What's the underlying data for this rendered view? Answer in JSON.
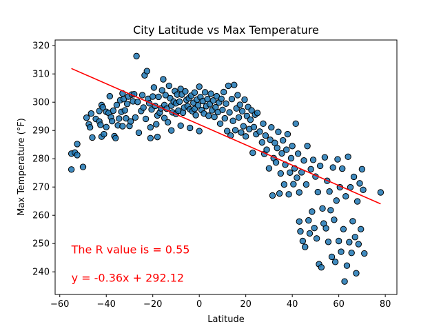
{
  "chart_data": {
    "type": "scatter",
    "title": "City Latitude vs Max Temperature",
    "xlabel": "Latitude",
    "ylabel": "Max Temperature (°F)",
    "xlim": [
      -62,
      85
    ],
    "ylim": [
      232,
      322
    ],
    "xticks": [
      -60,
      -40,
      -20,
      0,
      20,
      40,
      60,
      80
    ],
    "yticks": [
      240,
      250,
      260,
      270,
      280,
      290,
      300,
      310,
      320
    ],
    "grid": false,
    "point_color": "#1f77b4",
    "point_edge_color": "#000000",
    "regression_color": "#ff0000",
    "annotations": [
      {
        "text": "The R value is = 0.55",
        "x": -55,
        "y": 246.5,
        "color": "#ff0000"
      },
      {
        "text": "y = -0.36x + 292.12",
        "x": -55,
        "y": 236.5,
        "color": "#ff0000"
      }
    ],
    "regression": {
      "slope": -0.36,
      "intercept": 292.12,
      "x_range": [
        -55,
        78
      ]
    },
    "points": [
      [
        -55,
        276.2
      ],
      [
        -55,
        281.8
      ],
      [
        -53.5,
        282.2
      ],
      [
        -52.5,
        285.2
      ],
      [
        -52.5,
        281.3
      ],
      [
        -50,
        277.1
      ],
      [
        -48.5,
        294.5
      ],
      [
        -47.5,
        292.2
      ],
      [
        -47,
        291.1
      ],
      [
        -46.5,
        296
      ],
      [
        -46,
        287.5
      ],
      [
        -44.5,
        294.1
      ],
      [
        -43,
        296.9
      ],
      [
        -43,
        293.2
      ],
      [
        -42.5,
        292
      ],
      [
        -42,
        299
      ],
      [
        -42,
        287.8
      ],
      [
        -41.5,
        298.2
      ],
      [
        -41,
        288.7
      ],
      [
        -40,
        296.6
      ],
      [
        -40,
        291.2
      ],
      [
        -39,
        296.2
      ],
      [
        -38.5,
        302.1
      ],
      [
        -38,
        294.7
      ],
      [
        -37.5,
        293.3
      ],
      [
        -37,
        297
      ],
      [
        -36.5,
        288
      ],
      [
        -36,
        287.3
      ],
      [
        -35.5,
        299
      ],
      [
        -35,
        291.8
      ],
      [
        -34.5,
        294.2
      ],
      [
        -34,
        300.7
      ],
      [
        -33.5,
        296.6
      ],
      [
        -33,
        303.1
      ],
      [
        -33,
        291.5
      ],
      [
        -32.5,
        301.1
      ],
      [
        -32,
        297.1
      ],
      [
        -31.5,
        294.3
      ],
      [
        -31,
        299.4
      ],
      [
        -30.5,
        302
      ],
      [
        -30,
        291.6
      ],
      [
        -29.5,
        293.2
      ],
      [
        -29,
        302.7
      ],
      [
        -28.5,
        300.3
      ],
      [
        -28,
        302.8
      ],
      [
        -27.5,
        294.6
      ],
      [
        -27,
        316.3
      ],
      [
        -26.5,
        300.1
      ],
      [
        -26,
        289.2
      ],
      [
        -25,
        296.9
      ],
      [
        -24.5,
        302.5
      ],
      [
        -24,
        298.1
      ],
      [
        -23.5,
        309.5
      ],
      [
        -23,
        294.1
      ],
      [
        -22.5,
        311
      ],
      [
        -22,
        301.2
      ],
      [
        -21.5,
        299.6
      ],
      [
        -21,
        291.1
      ],
      [
        -21,
        287.3
      ],
      [
        -20.5,
        297.4
      ],
      [
        -20,
        302
      ],
      [
        -19.5,
        305.2
      ],
      [
        -19,
        298.7
      ],
      [
        -18.5,
        292.2
      ],
      [
        -18,
        287.7
      ],
      [
        -18,
        295.3
      ],
      [
        -17.5,
        301.9
      ],
      [
        -17,
        296.3
      ],
      [
        -16.5,
        297.8
      ],
      [
        -16,
        304.2
      ],
      [
        -15.5,
        308.1
      ],
      [
        -15,
        299
      ],
      [
        -15,
        294.4
      ],
      [
        -14.5,
        302.5
      ],
      [
        -14,
        297.7
      ],
      [
        -13.5,
        292.9
      ],
      [
        -13,
        305.8
      ],
      [
        -12.5,
        301.4
      ],
      [
        -12,
        298.8
      ],
      [
        -12,
        290
      ],
      [
        -11.5,
        296.4
      ],
      [
        -11,
        300.2
      ],
      [
        -10.5,
        303.9
      ],
      [
        -10,
        295.9
      ],
      [
        -10,
        299.6
      ],
      [
        -9.5,
        302.7
      ],
      [
        -9,
        297
      ],
      [
        -8.5,
        300.2
      ],
      [
        -8,
        291.7
      ],
      [
        -8,
        304.7
      ],
      [
        -7.5,
        302.7
      ],
      [
        -7,
        296.3
      ],
      [
        -6.5,
        298.1
      ],
      [
        -6,
        303.8
      ],
      [
        -5.5,
        300.8
      ],
      [
        -5,
        298.6
      ],
      [
        -4.5,
        301.4
      ],
      [
        -4,
        297.5
      ],
      [
        -4,
        290.9
      ],
      [
        -3.5,
        302.3
      ],
      [
        -3,
        296.8
      ],
      [
        -2.5,
        299.8
      ],
      [
        -2,
        297.6
      ],
      [
        -2,
        303.4
      ],
      [
        -1.5,
        295.4
      ],
      [
        -1,
        300.9
      ],
      [
        -0.5,
        298.9
      ],
      [
        0,
        305.5
      ],
      [
        0,
        289.8
      ],
      [
        0.5,
        301.8
      ],
      [
        1,
        297.2
      ],
      [
        1.5,
        300.4
      ],
      [
        2,
        296
      ],
      [
        2.5,
        303.5
      ],
      [
        3,
        298.6
      ],
      [
        3.5,
        301.1
      ],
      [
        4,
        295.2
      ],
      [
        4.5,
        299.3
      ],
      [
        5,
        303
      ],
      [
        5.5,
        297.1
      ],
      [
        6,
        300.6
      ],
      [
        6.5,
        294.8
      ],
      [
        7,
        298.2
      ],
      [
        7.5,
        302.1
      ],
      [
        8,
        296.5
      ],
      [
        8.5,
        299.9
      ],
      [
        9,
        292.4
      ],
      [
        9.5,
        301.2
      ],
      [
        10,
        297.3
      ],
      [
        10.5,
        303.6
      ],
      [
        11,
        294.3
      ],
      [
        11.5,
        299.5
      ],
      [
        12,
        289.8
      ],
      [
        12.5,
        305.8
      ],
      [
        13,
        296.4
      ],
      [
        13.5,
        288.2
      ],
      [
        14,
        301.1
      ],
      [
        14.5,
        293.4
      ],
      [
        15,
        306.1
      ],
      [
        15.5,
        290.1
      ],
      [
        16,
        297.8
      ],
      [
        16.5,
        302.5
      ],
      [
        17,
        294.6
      ],
      [
        17.5,
        299.1
      ],
      [
        18,
        289.3
      ],
      [
        18.5,
        296.8
      ],
      [
        19,
        291.5
      ],
      [
        19.5,
        300.9
      ],
      [
        20,
        287.9
      ],
      [
        20.5,
        295.1
      ],
      [
        21,
        298.3
      ],
      [
        21.5,
        290.5
      ],
      [
        22,
        293.8
      ],
      [
        22.5,
        297.1
      ],
      [
        23,
        282.1
      ],
      [
        23.5,
        291.2
      ],
      [
        24,
        295.6
      ],
      [
        24.5,
        288.7
      ],
      [
        25,
        296.2
      ],
      [
        26,
        289.6
      ],
      [
        27,
        285.8
      ],
      [
        27.5,
        292.4
      ],
      [
        28,
        281.7
      ],
      [
        28.5,
        288.2
      ],
      [
        29,
        283.2
      ],
      [
        30,
        276.6
      ],
      [
        30.5,
        286.7
      ],
      [
        31,
        291.1
      ],
      [
        31.5,
        267
      ],
      [
        32,
        280.2
      ],
      [
        32.5,
        285.6
      ],
      [
        33,
        278.7
      ],
      [
        33.5,
        283.8
      ],
      [
        34,
        289.5
      ],
      [
        34.5,
        267.7
      ],
      [
        35,
        274.8
      ],
      [
        35.5,
        281.9
      ],
      [
        36,
        286.5
      ],
      [
        36.5,
        270.9
      ],
      [
        37,
        277.9
      ],
      [
        37.5,
        283.2
      ],
      [
        38,
        288.7
      ],
      [
        38.5,
        267.4
      ],
      [
        39,
        275.1
      ],
      [
        39.5,
        280.2
      ],
      [
        40,
        284.5
      ],
      [
        40.5,
        271
      ],
      [
        41,
        276.6
      ],
      [
        41.5,
        292.4
      ],
      [
        42,
        273.3
      ],
      [
        42.5,
        281.8
      ],
      [
        43,
        257.8
      ],
      [
        43,
        268.1
      ],
      [
        43.5,
        254.3
      ],
      [
        44,
        275.2
      ],
      [
        44.5,
        250.9
      ],
      [
        45,
        279.4
      ],
      [
        45.5,
        248.8
      ],
      [
        46,
        270.9
      ],
      [
        46.5,
        284.5
      ],
      [
        47,
        258.2
      ],
      [
        47.5,
        253.6
      ],
      [
        48,
        276.3
      ],
      [
        48.5,
        261.3
      ],
      [
        49,
        279.6
      ],
      [
        49.5,
        255.5
      ],
      [
        50,
        273.7
      ],
      [
        50.5,
        251.8
      ],
      [
        51,
        268.2
      ],
      [
        51.5,
        242.7
      ],
      [
        52,
        277.5
      ],
      [
        52.5,
        241.6
      ],
      [
        53,
        262.4
      ],
      [
        53.5,
        257.1
      ],
      [
        54,
        280.5
      ],
      [
        54.5,
        255.4
      ],
      [
        55,
        272.2
      ],
      [
        55.5,
        250.6
      ],
      [
        56,
        268.4
      ],
      [
        56.5,
        261.8
      ],
      [
        57,
        245.3
      ],
      [
        57.5,
        276.9
      ],
      [
        58,
        258.4
      ],
      [
        58.5,
        243.5
      ],
      [
        59,
        265.2
      ],
      [
        59.5,
        279.8
      ],
      [
        60,
        250.9
      ],
      [
        60.5,
        269.9
      ],
      [
        61,
        247.1
      ],
      [
        61.5,
        276.5
      ],
      [
        62,
        255.1
      ],
      [
        62.5,
        236.6
      ],
      [
        63,
        266.7
      ],
      [
        63.5,
        242.2
      ],
      [
        64,
        280.7
      ],
      [
        64.5,
        250.5
      ],
      [
        65,
        269.9
      ],
      [
        65.5,
        246.7
      ],
      [
        66,
        257.9
      ],
      [
        66.5,
        273.6
      ],
      [
        67,
        252.3
      ],
      [
        67.5,
        239.5
      ],
      [
        68,
        264.9
      ],
      [
        68.5,
        249.8
      ],
      [
        69,
        271.3
      ],
      [
        69.5,
        255.1
      ],
      [
        70,
        276.3
      ],
      [
        70.5,
        269
      ],
      [
        71,
        246.5
      ],
      [
        78,
        268.1
      ]
    ]
  }
}
